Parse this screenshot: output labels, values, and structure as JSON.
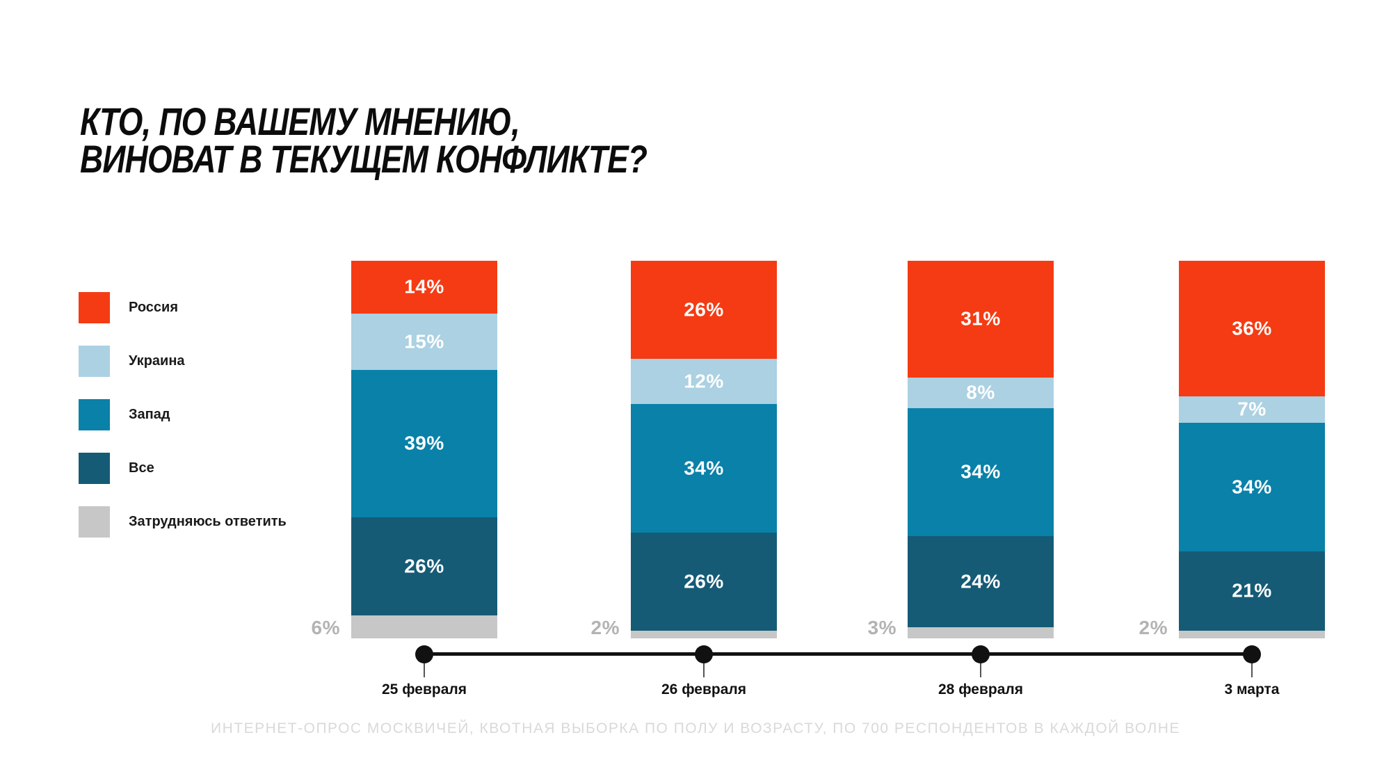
{
  "title": {
    "line1": "КТО, ПО ВАШЕМУ МНЕНИЮ,",
    "line2": "ВИНОВАТ В ТЕКУЩЕМ КОНФЛИКТЕ?"
  },
  "chart_data": {
    "type": "bar",
    "stacked": true,
    "orientation": "vertical",
    "title": "КТО, ПО ВАШЕМУ МНЕНИЮ, ВИНОВАТ В ТЕКУЩЕМ КОНФЛИКТЕ?",
    "categories": [
      "25 февраля",
      "26 февраля",
      "28 февраля",
      "3 марта"
    ],
    "series": [
      {
        "key": "russia",
        "name": "Россия",
        "color": "#F53B13",
        "values": [
          14,
          26,
          31,
          36
        ]
      },
      {
        "key": "ukraine",
        "name": "Украина",
        "color": "#ABD1E2",
        "values": [
          15,
          12,
          8,
          7
        ]
      },
      {
        "key": "west",
        "name": "Запад",
        "color": "#0981A8",
        "values": [
          39,
          34,
          34,
          34
        ]
      },
      {
        "key": "all",
        "name": "Все",
        "color": "#155B76",
        "values": [
          26,
          26,
          24,
          21
        ]
      },
      {
        "key": "undecided",
        "name": "Затрудняюсь ответить",
        "color": "#C7C7C7",
        "values": [
          6,
          2,
          3,
          2
        ],
        "label_outside": true
      }
    ],
    "value_suffix": "%",
    "ylim": [
      0,
      100
    ],
    "grid": false,
    "legend_position": "left",
    "axis_line_color": "#111111",
    "outside_label_color": "#b3b3b3"
  },
  "footer": {
    "text": "ИНТЕРНЕТ-ОПРОС МОСКВИЧЕЙ, КВОТНАЯ ВЫБОРКА ПО ПОЛУ И ВОЗРАСТУ, ПО 700 РЕСПОНДЕНТОВ В КАЖДОЙ ВОЛНЕ"
  }
}
